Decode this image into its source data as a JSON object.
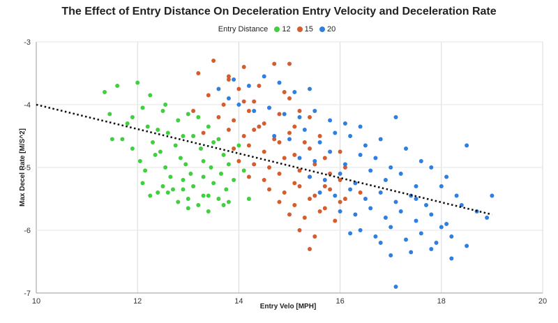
{
  "chart_data": {
    "type": "scatter",
    "title": "The Effect of Entry Distance On Deceleration Entry Velocity and Deceleration Rate",
    "xlabel": "Entry Velo [MPH]",
    "ylabel": "Max Decel Rate [M/S^2]",
    "xlim": [
      10,
      20
    ],
    "ylim": [
      -7,
      -3
    ],
    "xticks": [
      "10",
      "12",
      "14",
      "16",
      "18",
      "20"
    ],
    "yticks": [
      "-3",
      "-4",
      "-5",
      "-6",
      "-7"
    ],
    "grid": true,
    "legend": {
      "title": "Entry Distance",
      "placement": "top-center"
    },
    "series": [
      {
        "name": "12",
        "color": "#3fcf3f",
        "x": [
          11.35,
          11.45,
          11.6,
          11.8,
          12.0,
          12.1,
          12.25,
          12.4,
          12.55,
          11.7,
          11.9,
          12.2,
          12.5,
          12.8,
          13.0,
          12.3,
          12.6,
          12.9,
          13.2,
          13.4,
          11.5,
          11.9,
          12.35,
          12.75,
          13.1,
          13.5,
          12.05,
          12.45,
          12.85,
          13.25,
          13.6,
          14.0,
          12.15,
          12.55,
          12.95,
          13.3,
          13.7,
          12.65,
          13.05,
          13.45,
          13.8,
          12.1,
          12.5,
          12.9,
          13.3,
          13.65,
          14.1,
          12.7,
          13.1,
          13.5,
          13.9,
          12.25,
          12.6,
          13.0,
          13.4,
          13.75,
          14.2,
          12.8,
          13.2,
          13.6,
          13.0,
          13.4,
          13.8,
          12.4,
          12.9,
          13.3,
          13.7
        ],
        "y": [
          -3.8,
          -4.15,
          -3.7,
          -4.3,
          -3.65,
          -4.05,
          -3.85,
          -4.4,
          -4.0,
          -4.55,
          -4.2,
          -4.35,
          -4.1,
          -4.25,
          -4.15,
          -4.6,
          -4.45,
          -4.5,
          -4.2,
          -4.35,
          -4.55,
          -4.7,
          -4.8,
          -4.65,
          -4.5,
          -4.6,
          -4.9,
          -4.75,
          -4.85,
          -4.7,
          -4.55,
          -4.65,
          -5.05,
          -5.0,
          -4.95,
          -4.9,
          -4.8,
          -5.15,
          -5.1,
          -5.0,
          -4.95,
          -5.25,
          -5.3,
          -5.2,
          -5.15,
          -5.1,
          -5.05,
          -5.35,
          -5.3,
          -5.25,
          -5.2,
          -5.45,
          -5.4,
          -5.5,
          -5.45,
          -5.35,
          -5.5,
          -5.55,
          -5.6,
          -5.5,
          -5.65,
          -5.7,
          -5.55,
          -5.4,
          -5.35,
          -5.45,
          -5.6
        ]
      },
      {
        "name": "15",
        "color": "#d65c2e",
        "x": [
          13.2,
          13.5,
          13.8,
          14.1,
          14.4,
          14.7,
          15.0,
          13.4,
          13.7,
          14.0,
          14.3,
          14.6,
          14.9,
          15.2,
          13.1,
          13.6,
          13.9,
          14.2,
          14.5,
          14.8,
          15.1,
          15.4,
          13.3,
          13.8,
          14.1,
          14.4,
          14.7,
          15.0,
          15.3,
          15.6,
          13.9,
          14.2,
          14.5,
          14.8,
          15.1,
          15.4,
          15.7,
          16.0,
          14.0,
          14.3,
          14.6,
          14.9,
          15.2,
          15.5,
          15.8,
          16.1,
          14.2,
          14.5,
          14.8,
          15.1,
          15.4,
          15.7,
          16.0,
          14.6,
          14.9,
          15.2,
          15.5,
          15.8,
          16.1,
          16.4,
          14.8,
          15.1,
          15.4,
          15.7,
          16.0,
          15.0,
          15.3,
          15.6,
          15.9,
          15.2,
          15.5,
          15.4,
          13.8,
          14.1,
          14.3,
          15.0
        ],
        "y": [
          -3.5,
          -3.3,
          -3.6,
          -3.4,
          -3.7,
          -3.35,
          -3.9,
          -3.85,
          -4.0,
          -3.75,
          -3.95,
          -4.05,
          -3.8,
          -4.1,
          -4.1,
          -4.2,
          -4.25,
          -4.1,
          -4.3,
          -4.15,
          -4.35,
          -4.2,
          -4.45,
          -4.4,
          -4.5,
          -4.35,
          -4.55,
          -4.45,
          -4.6,
          -4.5,
          -4.7,
          -4.65,
          -4.75,
          -4.6,
          -4.8,
          -4.7,
          -4.85,
          -4.75,
          -4.9,
          -4.95,
          -5.0,
          -4.85,
          -5.05,
          -4.95,
          -5.1,
          -5.0,
          -5.15,
          -5.2,
          -5.1,
          -5.25,
          -5.15,
          -5.3,
          -5.2,
          -5.35,
          -5.4,
          -5.3,
          -5.45,
          -5.35,
          -5.5,
          -5.4,
          -5.55,
          -5.6,
          -5.5,
          -5.65,
          -5.55,
          -5.75,
          -5.8,
          -5.7,
          -5.85,
          -6.0,
          -6.1,
          -6.3,
          -3.55,
          -3.95,
          -4.4,
          -3.35
        ]
      },
      {
        "name": "20",
        "color": "#2f7fe0",
        "x": [
          13.9,
          14.2,
          14.5,
          14.8,
          15.1,
          15.4,
          13.6,
          13.8,
          14.0,
          14.3,
          14.6,
          14.9,
          15.2,
          15.5,
          15.8,
          16.1,
          16.4,
          14.7,
          15.0,
          15.3,
          15.6,
          15.9,
          16.2,
          16.5,
          16.8,
          17.1,
          15.2,
          15.5,
          15.8,
          16.1,
          16.4,
          16.7,
          17.0,
          17.3,
          17.6,
          15.4,
          15.7,
          16.0,
          16.3,
          16.6,
          16.9,
          17.2,
          17.5,
          17.8,
          18.1,
          15.6,
          15.9,
          16.2,
          16.5,
          16.8,
          17.1,
          17.4,
          17.7,
          18.0,
          18.3,
          16.0,
          16.3,
          16.6,
          16.9,
          17.2,
          17.5,
          17.8,
          18.1,
          18.4,
          18.7,
          16.4,
          16.7,
          17.0,
          17.3,
          17.6,
          17.9,
          18.2,
          18.5,
          18.9,
          19.0,
          17.0,
          17.4,
          17.8,
          18.2,
          17.1,
          16.2,
          16.8,
          17.5,
          18.0,
          18.5
        ],
        "y": [
          -3.6,
          -3.7,
          -3.55,
          -3.65,
          -3.8,
          -3.75,
          -3.75,
          -3.9,
          -4.0,
          -4.1,
          -4.05,
          -4.15,
          -4.2,
          -4.1,
          -4.25,
          -4.3,
          -4.35,
          -4.5,
          -4.55,
          -4.4,
          -4.6,
          -4.45,
          -4.5,
          -4.65,
          -4.55,
          -4.2,
          -4.85,
          -4.9,
          -4.75,
          -4.95,
          -4.8,
          -4.85,
          -5.0,
          -4.7,
          -4.9,
          -5.15,
          -5.2,
          -5.1,
          -5.25,
          -5.05,
          -5.2,
          -5.1,
          -5.3,
          -5.0,
          -5.15,
          -5.4,
          -5.45,
          -5.35,
          -5.5,
          -5.4,
          -5.55,
          -5.45,
          -5.6,
          -5.3,
          -5.45,
          -5.7,
          -5.75,
          -5.65,
          -5.8,
          -5.7,
          -5.85,
          -5.75,
          -5.9,
          -5.6,
          -5.7,
          -6.0,
          -6.1,
          -5.95,
          -6.15,
          -6.05,
          -6.2,
          -6.1,
          -6.25,
          -5.8,
          -5.45,
          -6.4,
          -6.35,
          -6.3,
          -6.45,
          -6.9,
          -6.05,
          -6.2,
          -5.5,
          -5.95,
          -4.65
        ]
      }
    ],
    "trendline": {
      "style": "dotted",
      "color": "#111111",
      "points": [
        [
          10,
          -4.0
        ],
        [
          19,
          -5.75
        ]
      ]
    }
  }
}
